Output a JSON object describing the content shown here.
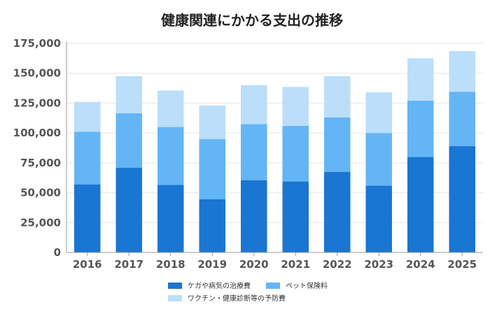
{
  "chart_data": {
    "type": "bar",
    "stacked": true,
    "title": "健康関連にかかる支出の推移",
    "xlabel": "",
    "ylabel": "",
    "categories": [
      "2016",
      "2017",
      "2018",
      "2019",
      "2020",
      "2021",
      "2022",
      "2023",
      "2024",
      "2025"
    ],
    "ylim": [
      0,
      175000
    ],
    "yticks": [
      0,
      25000,
      50000,
      75000,
      100000,
      125000,
      150000,
      175000
    ],
    "ytick_labels": [
      "0",
      "25,000",
      "50,000",
      "75,000",
      "100,000",
      "125,000",
      "150,000",
      "175,000"
    ],
    "grid": true,
    "legend_position": "bottom",
    "series": [
      {
        "name": "ケガや病気の治療費",
        "color": "#1976d2",
        "values": [
          57000,
          71000,
          56500,
          44500,
          60500,
          59500,
          67500,
          56000,
          80000,
          89000
        ]
      },
      {
        "name": "ペット保険料",
        "color": "#64b5f6",
        "values": [
          44000,
          45500,
          48500,
          50500,
          47000,
          46500,
          45500,
          44000,
          47000,
          45500
        ]
      },
      {
        "name": "ワクチン・健康診断等の予防費",
        "color": "#bbdefb",
        "values": [
          25000,
          31000,
          30500,
          28000,
          32500,
          32500,
          34500,
          34000,
          35500,
          34000
        ]
      }
    ]
  }
}
